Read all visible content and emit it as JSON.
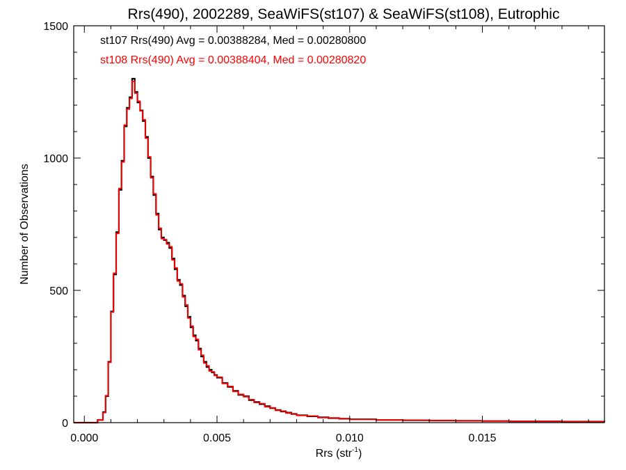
{
  "chart_data": {
    "type": "line",
    "title": "Rrs(490), 2002289, SeaWiFS(st107) & SeaWiFS(st108), Eutrophic",
    "xlabel_main": "Rrs (str",
    "xlabel_sup": "-1",
    "xlabel_close": ")",
    "ylabel": "Number of Observations",
    "xlim": [
      -0.0004,
      0.0196
    ],
    "ylim": [
      0,
      1500
    ],
    "x_ticks": [
      0.0,
      0.005,
      0.01,
      0.015
    ],
    "x_tick_labels": [
      "0.000",
      "0.005",
      "0.010",
      "0.015"
    ],
    "y_ticks": [
      0,
      500,
      1000,
      1500
    ],
    "y_tick_labels": [
      "0",
      "500",
      "1000",
      "1500"
    ],
    "annotations": [
      {
        "text": "st107 Rrs(490) Avg = 0.00388284, Med = 0.00280800",
        "color": "#000000"
      },
      {
        "text": "st108 Rrs(490) Avg = 0.00388404, Med = 0.00280820",
        "color": "#ff0000"
      }
    ],
    "x": [
      -0.0004,
      0.0,
      0.0005,
      0.0007,
      0.0008,
      0.0009,
      0.001,
      0.0011,
      0.0012,
      0.0013,
      0.0014,
      0.0015,
      0.0016,
      0.0017,
      0.0018,
      0.0019,
      0.002,
      0.0021,
      0.0022,
      0.0023,
      0.0024,
      0.0025,
      0.0026,
      0.0027,
      0.0028,
      0.0029,
      0.003,
      0.0031,
      0.0032,
      0.0033,
      0.0034,
      0.0035,
      0.0036,
      0.0037,
      0.0038,
      0.0039,
      0.004,
      0.0041,
      0.0042,
      0.0043,
      0.0044,
      0.0045,
      0.0046,
      0.0047,
      0.0048,
      0.0049,
      0.005,
      0.0052,
      0.0054,
      0.0056,
      0.0058,
      0.006,
      0.0062,
      0.0064,
      0.0066,
      0.0068,
      0.007,
      0.0072,
      0.0074,
      0.0076,
      0.0078,
      0.008,
      0.0084,
      0.0088,
      0.0092,
      0.0096,
      0.01,
      0.011,
      0.012,
      0.013,
      0.014,
      0.015,
      0.016,
      0.017,
      0.018,
      0.019,
      0.0196
    ],
    "series": [
      {
        "name": "st107",
        "color": "#000000",
        "values": [
          0,
          0,
          10,
          40,
          100,
          230,
          420,
          560,
          720,
          880,
          990,
          1120,
          1190,
          1230,
          1300,
          1250,
          1210,
          1180,
          1140,
          1080,
          1000,
          930,
          860,
          790,
          730,
          700,
          690,
          680,
          660,
          620,
          580,
          540,
          520,
          480,
          440,
          400,
          360,
          330,
          310,
          280,
          250,
          230,
          210,
          200,
          190,
          180,
          170,
          150,
          135,
          120,
          105,
          100,
          85,
          78,
          70,
          62,
          55,
          48,
          42,
          38,
          33,
          28,
          24,
          20,
          17,
          15,
          13,
          10,
          9,
          8,
          7,
          6,
          5,
          5,
          4,
          4,
          3
        ]
      },
      {
        "name": "st108",
        "color": "#ff0000",
        "values": [
          0,
          0,
          10,
          38,
          102,
          228,
          418,
          565,
          715,
          885,
          985,
          1125,
          1185,
          1225,
          1290,
          1245,
          1215,
          1178,
          1145,
          1075,
          1005,
          925,
          865,
          785,
          735,
          695,
          692,
          675,
          665,
          615,
          585,
          535,
          525,
          475,
          445,
          395,
          365,
          325,
          315,
          275,
          255,
          225,
          215,
          195,
          192,
          178,
          172,
          148,
          137,
          118,
          107,
          98,
          87,
          76,
          72,
          60,
          56,
          46,
          44,
          36,
          34,
          27,
          25,
          19,
          18,
          14,
          13,
          10,
          9,
          8,
          7,
          6,
          5,
          5,
          4,
          4,
          3
        ]
      }
    ]
  }
}
